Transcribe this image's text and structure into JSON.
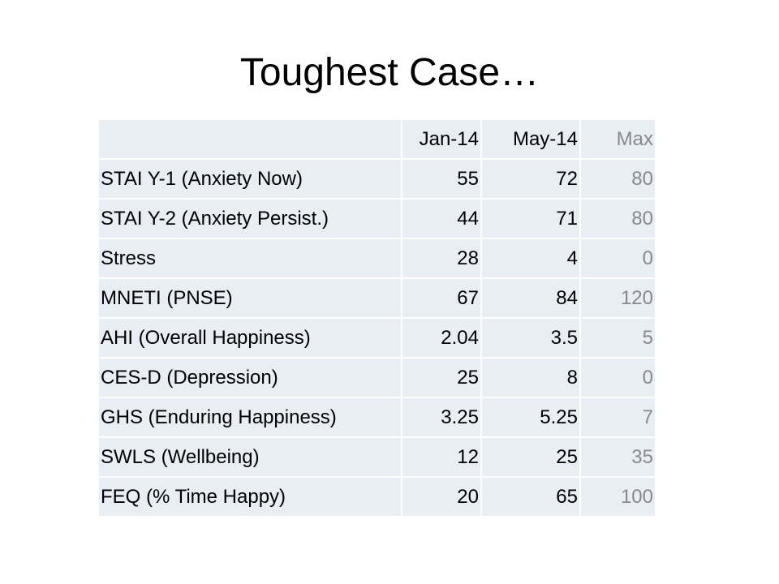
{
  "title": "Toughest Case…",
  "table": {
    "headers": [
      "",
      "Jan-14",
      "May-14",
      "Max"
    ],
    "rows": [
      {
        "label": "STAI Y-1 (Anxiety Now)",
        "jan": "55",
        "may": "72",
        "max": "80"
      },
      {
        "label": "STAI Y-2 (Anxiety Persist.)",
        "jan": "44",
        "may": "71",
        "max": "80"
      },
      {
        "label": "Stress",
        "jan": "28",
        "may": "4",
        "max": "0"
      },
      {
        "label": "MNETI (PNSE)",
        "jan": "67",
        "may": "84",
        "max": "120"
      },
      {
        "label": "AHI (Overall Happiness)",
        "jan": "2.04",
        "may": "3.5",
        "max": "5"
      },
      {
        "label": "CES-D (Depression)",
        "jan": "25",
        "may": "8",
        "max": "0"
      },
      {
        "label": "GHS (Enduring Happiness)",
        "jan": "3.25",
        "may": "5.25",
        "max": "7"
      },
      {
        "label": "SWLS (Wellbeing)",
        "jan": "12",
        "may": "25",
        "max": "35"
      },
      {
        "label": "FEQ (% Time Happy)",
        "jan": "20",
        "may": "65",
        "max": "100"
      }
    ]
  },
  "colors": {
    "cell_background": "#e9edf4",
    "max_column_text": "#8a8a8a"
  }
}
